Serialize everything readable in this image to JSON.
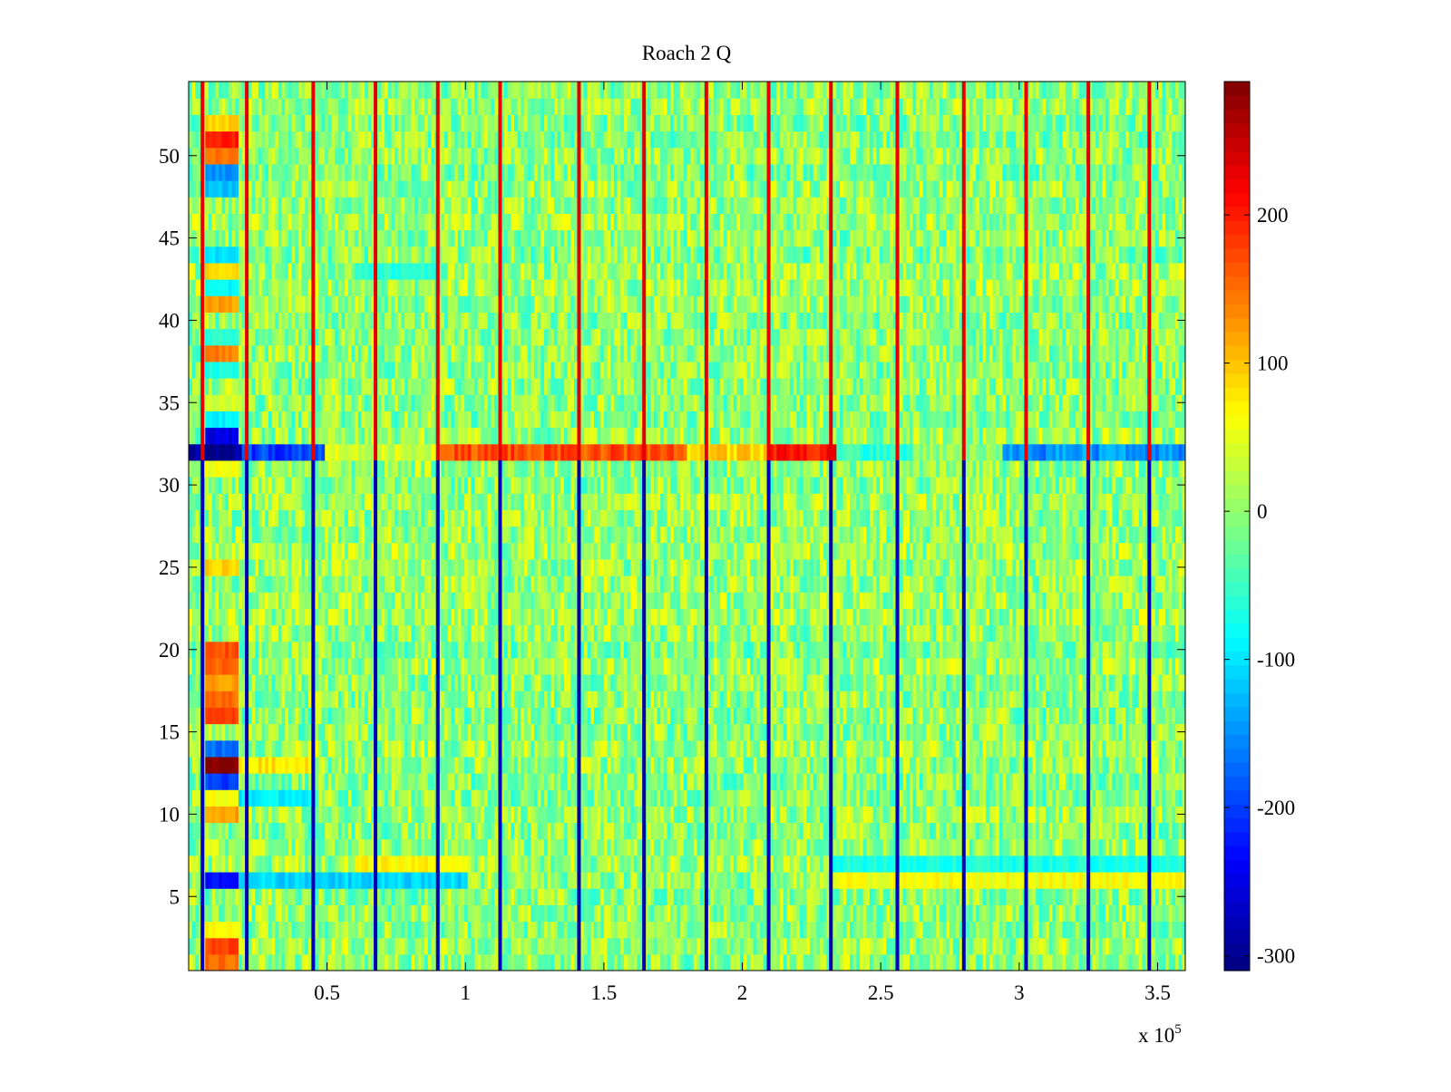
{
  "chart_data": {
    "type": "heatmap",
    "title": "Roach 2 Q",
    "xlabel": "",
    "ylabel": "",
    "x_multiplier_label": "x 10",
    "x_multiplier_exponent": "5",
    "xlim": [
      0,
      360000
    ],
    "ylim": [
      0.5,
      54.5
    ],
    "x_ticks": [
      {
        "value": 50000,
        "label": "0.5"
      },
      {
        "value": 100000,
        "label": "1"
      },
      {
        "value": 150000,
        "label": "1.5"
      },
      {
        "value": 200000,
        "label": "2"
      },
      {
        "value": 250000,
        "label": "2.5"
      },
      {
        "value": 300000,
        "label": "3"
      },
      {
        "value": 350000,
        "label": "3.5"
      }
    ],
    "y_ticks": [
      {
        "value": 5,
        "label": "5"
      },
      {
        "value": 10,
        "label": "10"
      },
      {
        "value": 15,
        "label": "15"
      },
      {
        "value": 20,
        "label": "20"
      },
      {
        "value": 25,
        "label": "25"
      },
      {
        "value": 30,
        "label": "30"
      },
      {
        "value": 35,
        "label": "35"
      },
      {
        "value": 40,
        "label": "40"
      },
      {
        "value": 45,
        "label": "45"
      },
      {
        "value": 50,
        "label": "50"
      }
    ],
    "colorbar": {
      "colormap": "jet",
      "range": [
        -310,
        290
      ],
      "ticks": [
        {
          "value": 200,
          "label": "200"
        },
        {
          "value": 100,
          "label": "100"
        },
        {
          "value": 0,
          "label": "0"
        },
        {
          "value": -100,
          "label": "-100"
        },
        {
          "value": -200,
          "label": "-200"
        },
        {
          "value": -300,
          "label": "-300"
        }
      ]
    },
    "rows": 54,
    "background_value_range": [
      -60,
      60
    ],
    "vertical_stripe_x": [
      5000,
      21000,
      45000,
      67500,
      90000,
      112500,
      141000,
      164500,
      187000,
      209500,
      232000,
      256000,
      280000,
      302500,
      325000,
      347000
    ],
    "stripe_values": {
      "upper_half": 230,
      "lower_half": -280
    },
    "channel_32_segments": [
      {
        "x_start": 0,
        "x_end": 20000,
        "value": -300
      },
      {
        "x_start": 20000,
        "x_end": 50000,
        "value": -200
      },
      {
        "x_start": 50000,
        "x_end": 90000,
        "value": 40
      },
      {
        "x_start": 90000,
        "x_end": 180000,
        "value": 170
      },
      {
        "x_start": 180000,
        "x_end": 210000,
        "value": 90
      },
      {
        "x_start": 210000,
        "x_end": 235000,
        "value": 200
      },
      {
        "x_start": 235000,
        "x_end": 262000,
        "value": -60
      },
      {
        "x_start": 262000,
        "x_end": 295000,
        "value": 0
      },
      {
        "x_start": 295000,
        "x_end": 360000,
        "value": -150
      }
    ],
    "early_block": {
      "x_range": [
        7000,
        18000
      ],
      "row_values": {
        "1": 150,
        "2": 180,
        "3": 70,
        "6": -230,
        "10": 120,
        "11": 60,
        "12": -200,
        "13": 290,
        "14": -170,
        "16": 170,
        "17": 150,
        "18": 120,
        "19": 160,
        "20": 170,
        "25": 90,
        "31": 60,
        "33": -250,
        "34": -90,
        "35": 40,
        "37": -70,
        "38": 140,
        "39": -60,
        "41": 120,
        "42": -90,
        "43": 90,
        "44": -100,
        "48": -120,
        "49": -150,
        "50": 150,
        "51": 200,
        "52": 90
      }
    },
    "row_bands": [
      {
        "row": 6,
        "x_start": 18000,
        "x_end": 100000,
        "value": -110
      },
      {
        "row": 11,
        "x_start": 18000,
        "x_end": 45000,
        "value": -90
      },
      {
        "row": 13,
        "x_start": 18000,
        "x_end": 45000,
        "value": 80
      },
      {
        "row": 7,
        "x_start": 60000,
        "x_end": 100000,
        "value": 70
      },
      {
        "row": 43,
        "x_start": 60000,
        "x_end": 90000,
        "value": -60
      },
      {
        "row": 6,
        "x_start": 232000,
        "x_end": 360000,
        "value": 60
      },
      {
        "row": 7,
        "x_start": 232000,
        "x_end": 360000,
        "value": -70
      }
    ]
  }
}
